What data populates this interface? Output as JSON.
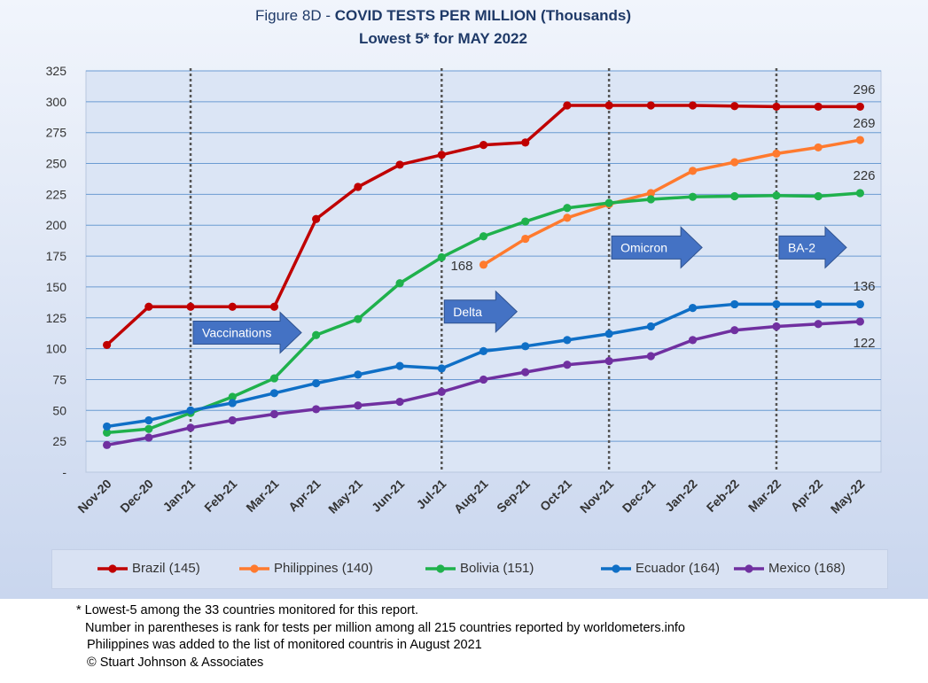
{
  "title": {
    "prefix": "Figure 8D - ",
    "main": "COVID TESTS PER MILLION (Thousands)",
    "subtitle": "Lowest 5* for MAY 2022"
  },
  "chart_data": {
    "type": "line",
    "title": "Figure 8D - COVID TESTS PER MILLION (Thousands)",
    "subtitle": "Lowest 5* for MAY 2022",
    "xlabel": "",
    "ylabel": "",
    "ylim": [
      0,
      325
    ],
    "yticks": [
      0,
      25,
      50,
      75,
      100,
      125,
      150,
      175,
      200,
      225,
      250,
      275,
      300,
      325
    ],
    "ytick_labels": [
      "-",
      "25",
      "50",
      "75",
      "100",
      "125",
      "150",
      "175",
      "200",
      "225",
      "250",
      "275",
      "300",
      "325"
    ],
    "grid": "horizontal",
    "legend_position": "bottom",
    "categories": [
      "Nov-20",
      "Dec-20",
      "Jan-21",
      "Feb-21",
      "Mar-21",
      "Apr-21",
      "May-21",
      "Jun-21",
      "Jul-21",
      "Aug-21",
      "Sep-21",
      "Oct-21",
      "Nov-21",
      "Dec-21",
      "Jan-22",
      "Feb-22",
      "Mar-22",
      "Apr-22",
      "May-22"
    ],
    "series": [
      {
        "name": "Brazil (145)",
        "color": "#c00000",
        "values": [
          103,
          134,
          134,
          134,
          134,
          205,
          231,
          249,
          257,
          265,
          267,
          297,
          297,
          297,
          297,
          296.5,
          296,
          296,
          296
        ]
      },
      {
        "name": "Philippines (140)",
        "color": "#ff7a2e",
        "values": [
          null,
          null,
          null,
          null,
          null,
          null,
          null,
          null,
          null,
          168,
          189,
          206,
          217,
          226,
          244,
          251,
          258,
          263,
          269
        ]
      },
      {
        "name": "Bolivia (151)",
        "color": "#1fb14c",
        "values": [
          32,
          35,
          48,
          61,
          76,
          111,
          124,
          153,
          174,
          191,
          203,
          214,
          218,
          221,
          223,
          223.5,
          224,
          223.5,
          226
        ]
      },
      {
        "name": "Ecuador (164)",
        "color": "#0f6fc6",
        "values": [
          37,
          42,
          50,
          56,
          64,
          72,
          79,
          86,
          84,
          98,
          102,
          107,
          112,
          118,
          133,
          136,
          136,
          136,
          136
        ]
      },
      {
        "name": "Mexico (168)",
        "color": "#7030a0",
        "values": [
          22,
          28,
          36,
          42,
          47,
          51,
          54,
          57,
          65,
          75,
          81,
          87,
          90,
          94,
          107,
          115,
          118,
          120,
          122
        ]
      }
    ],
    "data_labels": [
      {
        "series": "Brazil (145)",
        "category": "May-22",
        "text": "296"
      },
      {
        "series": "Philippines (140)",
        "category": "May-22",
        "text": "269"
      },
      {
        "series": "Bolivia (151)",
        "category": "May-22",
        "text": "226"
      },
      {
        "series": "Ecuador (164)",
        "category": "May-22",
        "text": "136"
      },
      {
        "series": "Mexico (168)",
        "category": "May-22",
        "text": "122"
      },
      {
        "series": "Philippines (140)",
        "category": "Aug-21",
        "text": "168"
      }
    ],
    "vertical_markers": [
      "Jan-21",
      "Jul-21",
      "Nov-21",
      "Mar-22"
    ],
    "annotations": [
      {
        "text": "Vaccinations",
        "category": "Jan-21",
        "y": 113
      },
      {
        "text": "Delta",
        "category": "Jul-21",
        "y": 130
      },
      {
        "text": "Omicron",
        "category": "Nov-21",
        "y": 182
      },
      {
        "text": "BA-2",
        "category": "Mar-22",
        "y": 182
      }
    ]
  },
  "footnotes": [
    "* Lowest-5 among the 33 countries monitored for this report.",
    "Number in parentheses is rank for tests per million among all 215 countries reported by worldometers.info",
    "Philippines  was added to the list of monitored countris in August 2021",
    "© Stuart Johnson & Associates"
  ]
}
